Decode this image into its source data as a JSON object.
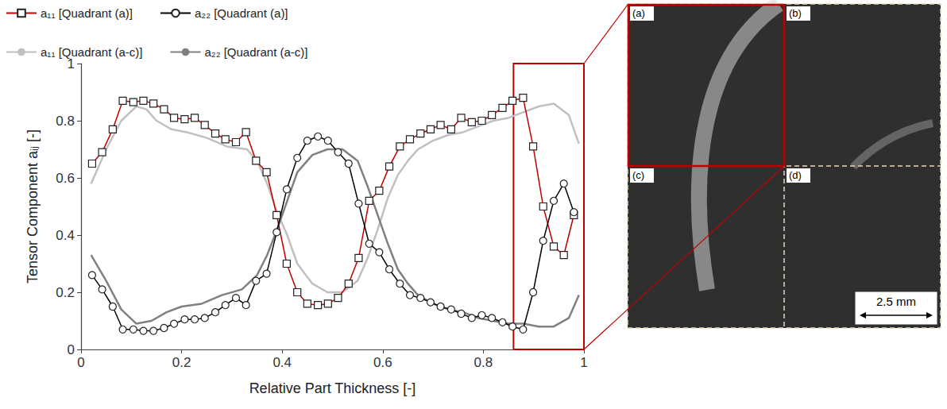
{
  "chart_data": {
    "type": "line",
    "x_label": "Relative Part Thickness [-]",
    "y_label": "Tensor Component aᵢⱼ [-]",
    "xlim": [
      0,
      1
    ],
    "xticks": [
      0,
      0.2,
      0.4,
      0.6,
      0.8,
      1
    ],
    "ylim": [
      0,
      1
    ],
    "yticks": [
      0,
      0.2,
      0.4,
      0.6,
      0.8,
      1
    ],
    "grid": false,
    "legend": "top-left",
    "highlight": {
      "x": [
        0.86,
        1
      ],
      "y": [
        0,
        1
      ]
    },
    "inset": {
      "panels": [
        "(a)",
        "(b)",
        "(c)",
        "(d)"
      ],
      "scale_bar": "2.5 mm"
    },
    "series": [
      {
        "name": "a₁₁ [Quadrant (a)]",
        "color": "#c00000",
        "marker": "square",
        "line_style": "solid",
        "x": [
          0.022,
          0.042,
          0.063,
          0.083,
          0.104,
          0.124,
          0.144,
          0.165,
          0.185,
          0.206,
          0.226,
          0.246,
          0.267,
          0.287,
          0.308,
          0.328,
          0.348,
          0.369,
          0.389,
          0.409,
          0.43,
          0.45,
          0.471,
          0.491,
          0.511,
          0.532,
          0.552,
          0.573,
          0.593,
          0.613,
          0.634,
          0.654,
          0.675,
          0.695,
          0.715,
          0.736,
          0.756,
          0.777,
          0.797,
          0.817,
          0.838,
          0.858,
          0.879,
          0.899,
          0.919,
          0.94,
          0.96,
          0.98
        ],
        "values": [
          0.65,
          0.69,
          0.77,
          0.87,
          0.865,
          0.87,
          0.86,
          0.84,
          0.81,
          0.805,
          0.81,
          0.785,
          0.755,
          0.735,
          0.725,
          0.76,
          0.66,
          0.62,
          0.47,
          0.3,
          0.2,
          0.16,
          0.155,
          0.16,
          0.18,
          0.23,
          0.32,
          0.52,
          0.555,
          0.64,
          0.71,
          0.735,
          0.755,
          0.77,
          0.785,
          0.77,
          0.81,
          0.795,
          0.8,
          0.82,
          0.845,
          0.87,
          0.88,
          0.71,
          0.5,
          0.36,
          0.33,
          0.47
        ]
      },
      {
        "name": "a₂₂ [Quadrant (a)]",
        "color": "#000000",
        "marker": "circle",
        "line_style": "solid",
        "x": [
          0.022,
          0.042,
          0.063,
          0.083,
          0.104,
          0.124,
          0.144,
          0.165,
          0.185,
          0.206,
          0.226,
          0.246,
          0.267,
          0.287,
          0.308,
          0.328,
          0.348,
          0.369,
          0.389,
          0.409,
          0.43,
          0.45,
          0.471,
          0.491,
          0.511,
          0.532,
          0.552,
          0.573,
          0.593,
          0.613,
          0.634,
          0.654,
          0.675,
          0.695,
          0.715,
          0.736,
          0.756,
          0.777,
          0.797,
          0.817,
          0.838,
          0.858,
          0.879,
          0.899,
          0.919,
          0.94,
          0.96,
          0.98
        ],
        "values": [
          0.26,
          0.21,
          0.15,
          0.07,
          0.07,
          0.065,
          0.065,
          0.075,
          0.09,
          0.105,
          0.105,
          0.11,
          0.13,
          0.155,
          0.18,
          0.155,
          0.24,
          0.265,
          0.41,
          0.56,
          0.67,
          0.73,
          0.745,
          0.73,
          0.69,
          0.65,
          0.51,
          0.37,
          0.34,
          0.28,
          0.23,
          0.19,
          0.18,
          0.165,
          0.15,
          0.14,
          0.125,
          0.11,
          0.12,
          0.11,
          0.095,
          0.08,
          0.07,
          0.2,
          0.38,
          0.52,
          0.58,
          0.48
        ]
      },
      {
        "name": "a₁₁ [Quadrant (a-c)]",
        "color": "#c0c0c0",
        "marker": "none",
        "line_style": "solid",
        "x": [
          0.02,
          0.05,
          0.08,
          0.11,
          0.13,
          0.15,
          0.18,
          0.21,
          0.25,
          0.29,
          0.33,
          0.35,
          0.37,
          0.39,
          0.41,
          0.43,
          0.46,
          0.49,
          0.52,
          0.55,
          0.57,
          0.59,
          0.61,
          0.63,
          0.65,
          0.67,
          0.7,
          0.73,
          0.76,
          0.79,
          0.82,
          0.85,
          0.88,
          0.91,
          0.94,
          0.97,
          0.99
        ],
        "values": [
          0.58,
          0.7,
          0.8,
          0.85,
          0.84,
          0.8,
          0.77,
          0.76,
          0.74,
          0.71,
          0.7,
          0.66,
          0.58,
          0.48,
          0.4,
          0.3,
          0.23,
          0.2,
          0.2,
          0.24,
          0.32,
          0.42,
          0.53,
          0.61,
          0.66,
          0.7,
          0.73,
          0.75,
          0.76,
          0.78,
          0.8,
          0.81,
          0.83,
          0.85,
          0.86,
          0.82,
          0.72
        ]
      },
      {
        "name": "a₂₂ [Quadrant (a-c)]",
        "color": "#808080",
        "marker": "none",
        "line_style": "solid",
        "x": [
          0.02,
          0.05,
          0.08,
          0.11,
          0.14,
          0.17,
          0.2,
          0.24,
          0.28,
          0.32,
          0.35,
          0.37,
          0.39,
          0.41,
          0.43,
          0.46,
          0.49,
          0.52,
          0.55,
          0.57,
          0.59,
          0.61,
          0.63,
          0.65,
          0.67,
          0.7,
          0.73,
          0.76,
          0.79,
          0.82,
          0.85,
          0.88,
          0.91,
          0.94,
          0.97,
          0.99
        ],
        "values": [
          0.33,
          0.24,
          0.14,
          0.09,
          0.1,
          0.13,
          0.15,
          0.16,
          0.19,
          0.21,
          0.26,
          0.33,
          0.42,
          0.52,
          0.62,
          0.68,
          0.7,
          0.7,
          0.66,
          0.57,
          0.47,
          0.37,
          0.28,
          0.23,
          0.19,
          0.16,
          0.14,
          0.13,
          0.11,
          0.1,
          0.09,
          0.09,
          0.08,
          0.08,
          0.11,
          0.19
        ]
      }
    ]
  }
}
